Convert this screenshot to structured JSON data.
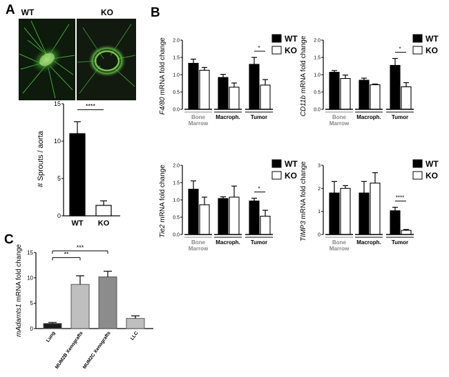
{
  "colors": {
    "black": "#000000",
    "white": "#ffffff",
    "lightgray": "#bfbfbf",
    "darkgray": "#8c8c8c",
    "lung": "#1a1a1a",
    "micro_green": "#3fbf3f",
    "group_gray": "#888888"
  },
  "panels": {
    "A": {
      "label": "A",
      "wt_label": "WT",
      "ko_label": "KO"
    },
    "B": {
      "label": "B"
    },
    "C": {
      "label": "C"
    }
  },
  "legend": {
    "wt": "WT",
    "ko": "KO"
  },
  "chart_data": [
    {
      "id": "A",
      "type": "bar",
      "categories": [
        "WT",
        "KO"
      ],
      "values": [
        11.0,
        1.4
      ],
      "errors": [
        1.6,
        0.6
      ],
      "colors": [
        "#000000",
        "#ffffff"
      ],
      "ylabel": "# Sprouts / aorta",
      "ylim": [
        0,
        15
      ],
      "yticks": [
        0,
        5,
        10,
        15
      ],
      "significance": [
        {
          "from": 0,
          "to": 1,
          "label": "****"
        }
      ]
    },
    {
      "id": "B1",
      "type": "bar",
      "groups": [
        {
          "label": [
            "Bone",
            "Marrow"
          ],
          "label_color": "#888888",
          "wt": 1.33,
          "wt_err": 0.12,
          "ko": 1.13,
          "ko_err": 0.08
        },
        {
          "label": [
            "Macroph."
          ],
          "label_color": "#000000",
          "wt": 0.92,
          "wt_err": 0.09,
          "ko": 0.64,
          "ko_err": 0.12
        },
        {
          "label": [
            "Tumor"
          ],
          "label_color": "#000000",
          "wt": 1.3,
          "wt_err": 0.2,
          "ko": 0.7,
          "ko_err": 0.16,
          "sig": "*"
        }
      ],
      "ylabel_italic": "F4/80",
      "ylabel_rest": " mRNA fold change",
      "ylim": [
        0,
        2.0
      ],
      "yticks": [
        "0.0",
        "0.5",
        "1.0",
        "1.5",
        "2.0"
      ]
    },
    {
      "id": "B2",
      "type": "bar",
      "groups": [
        {
          "label": [
            "Bone",
            "Marrow"
          ],
          "label_color": "#888888",
          "wt": 1.07,
          "wt_err": 0.05,
          "ko": 0.89,
          "ko_err": 0.1
        },
        {
          "label": [
            "Macroph."
          ],
          "label_color": "#000000",
          "wt": 0.84,
          "wt_err": 0.06,
          "ko": 0.71,
          "ko_err": 0.02
        },
        {
          "label": [
            "Tumor"
          ],
          "label_color": "#000000",
          "wt": 1.27,
          "wt_err": 0.2,
          "ko": 0.65,
          "ko_err": 0.12,
          "sig": "*"
        }
      ],
      "ylabel_italic": "CD11b",
      "ylabel_rest": " mRNA fold change",
      "ylim": [
        0,
        2.0
      ],
      "yticks": [
        "0.0",
        "0.5",
        "1.0",
        "1.5",
        "2.0"
      ]
    },
    {
      "id": "B3",
      "type": "bar",
      "groups": [
        {
          "label": [
            "Bone",
            "Marrow"
          ],
          "label_color": "#888888",
          "wt": 1.31,
          "wt_err": 0.24,
          "ko": 0.86,
          "ko_err": 0.22
        },
        {
          "label": [
            "Macroph."
          ],
          "label_color": "#000000",
          "wt": 1.04,
          "wt_err": 0.05,
          "ko": 1.08,
          "ko_err": 0.32
        },
        {
          "label": [
            "Tumor"
          ],
          "label_color": "#000000",
          "wt": 0.97,
          "wt_err": 0.08,
          "ko": 0.53,
          "ko_err": 0.17,
          "sig": "*"
        }
      ],
      "ylabel_italic": "Tie2",
      "ylabel_rest": " mRNA fold change",
      "ylim": [
        0,
        2.0
      ],
      "yticks": [
        "0.0",
        "0.5",
        "1.0",
        "1.5",
        "2.0"
      ]
    },
    {
      "id": "B4",
      "type": "bar",
      "groups": [
        {
          "label": [
            "Bone",
            "Marrow"
          ],
          "label_color": "#888888",
          "wt": 1.8,
          "wt_err": 0.5,
          "ko": 2.0,
          "ko_err": 0.12
        },
        {
          "label": [
            "Macroph."
          ],
          "label_color": "#000000",
          "wt": 1.8,
          "wt_err": 0.5,
          "ko": 2.23,
          "ko_err": 0.45
        },
        {
          "label": [
            "Tumor"
          ],
          "label_color": "#000000",
          "wt": 1.03,
          "wt_err": 0.15,
          "ko": 0.18,
          "ko_err": 0.04,
          "sig": "****"
        }
      ],
      "ylabel_italic": "TIMP3",
      "ylabel_rest": " mRNA fold change",
      "ylim": [
        0,
        3
      ],
      "yticks": [
        "0",
        "1",
        "2",
        "3"
      ]
    },
    {
      "id": "C",
      "type": "bar",
      "categories": [
        "Lung",
        "MUM2B Xenografts",
        "MUM2C Xenografts",
        "LLC"
      ],
      "values": [
        1.0,
        8.7,
        10.2,
        2.0
      ],
      "errors": [
        0.2,
        1.7,
        1.1,
        0.5
      ],
      "colors": [
        "#1a1a1a",
        "#bfbfbf",
        "#8c8c8c",
        "#bfbfbf"
      ],
      "ylabel_italic": "mAdamts1",
      "ylabel_rest": " mRNA fold change",
      "ylim": [
        0,
        15
      ],
      "yticks": [
        "0",
        "5",
        "10",
        "15"
      ],
      "significance": [
        {
          "from": 0,
          "to": 1,
          "label": "**"
        },
        {
          "from": 0,
          "to": 2,
          "label": "***"
        }
      ]
    }
  ]
}
